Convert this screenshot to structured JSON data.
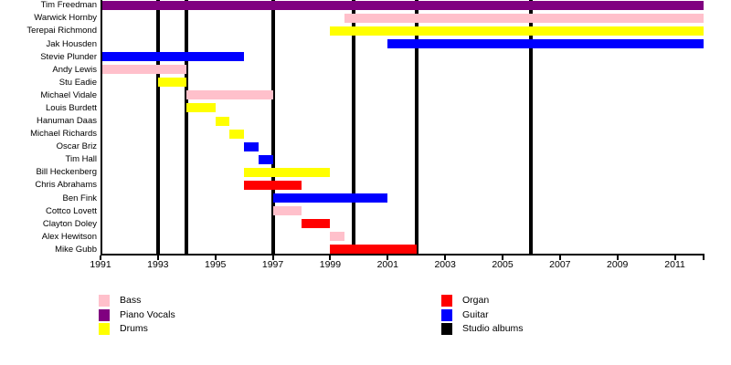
{
  "chart_data": {
    "type": "bar",
    "subtype": "timeline-gantt",
    "title": "",
    "xlabel": "",
    "ylabel": "",
    "grid": false,
    "x_axis": {
      "min": 1991,
      "max": 2012,
      "tick_years": [
        1991,
        1993,
        1995,
        1997,
        1999,
        2001,
        2003,
        2005,
        2007,
        2009,
        2011
      ],
      "tick_labels": [
        "1991",
        "1993",
        "1995",
        "1997",
        "1999",
        "2001",
        "2003",
        "2005",
        "2007",
        "2009",
        "2011"
      ],
      "end_tick_year": 2012
    },
    "role_colors": {
      "Bass": "#FFC0CB",
      "Piano Vocals": "#800080",
      "Drums": "#FFFF00",
      "Organ": "#FF0000",
      "Guitar": "#0000FF",
      "Studio albums": "#000000"
    },
    "members": [
      {
        "name": "Tim Freedman",
        "role": "Piano Vocals",
        "start": 1991,
        "end": 2012
      },
      {
        "name": "Warwick Hornby",
        "role": "Bass",
        "start": 1999.5,
        "end": 2012
      },
      {
        "name": "Terepai Richmond",
        "role": "Drums",
        "start": 1999,
        "end": 2012
      },
      {
        "name": "Jak Housden",
        "role": "Guitar",
        "start": 2001,
        "end": 2012
      },
      {
        "name": "Stevie Plunder",
        "role": "Guitar",
        "start": 1991,
        "end": 1996
      },
      {
        "name": "Andy Lewis",
        "role": "Bass",
        "start": 1991,
        "end": 1994
      },
      {
        "name": "Stu Eadie",
        "role": "Drums",
        "start": 1993,
        "end": 1994
      },
      {
        "name": "Michael Vidale",
        "role": "Bass",
        "start": 1994,
        "end": 1997
      },
      {
        "name": "Louis Burdett",
        "role": "Drums",
        "start": 1994,
        "end": 1995
      },
      {
        "name": "Hanuman Daas",
        "role": "Drums",
        "start": 1995,
        "end": 1995.5
      },
      {
        "name": "Michael Richards",
        "role": "Drums",
        "start": 1995.5,
        "end": 1996
      },
      {
        "name": "Oscar Briz",
        "role": "Guitar",
        "start": 1996,
        "end": 1996.5
      },
      {
        "name": "Tim Hall",
        "role": "Guitar",
        "start": 1996.5,
        "end": 1997
      },
      {
        "name": "Bill Heckenberg",
        "role": "Drums",
        "start": 1996,
        "end": 1999
      },
      {
        "name": "Chris Abrahams",
        "role": "Organ",
        "start": 1996,
        "end": 1998
      },
      {
        "name": "Ben Fink",
        "role": "Guitar",
        "start": 1997,
        "end": 2001
      },
      {
        "name": "Cottco Lovett",
        "role": "Bass",
        "start": 1997,
        "end": 1998
      },
      {
        "name": "Clayton Doley",
        "role": "Organ",
        "start": 1998,
        "end": 1999
      },
      {
        "name": "Alex Hewitson",
        "role": "Bass",
        "start": 1999,
        "end": 1999.5
      },
      {
        "name": "Mike Gubb",
        "role": "Organ",
        "start": 1999,
        "end": 2002
      }
    ],
    "studio_album_lines": [
      1993,
      1994,
      1997,
      1999.8,
      2002,
      2006
    ],
    "legend": {
      "position": "bottom",
      "columns": [
        [
          {
            "label": "Bass",
            "color": "#FFC0CB"
          },
          {
            "label": "Piano Vocals",
            "color": "#800080"
          },
          {
            "label": "Drums",
            "color": "#FFFF00"
          }
        ],
        [
          {
            "label": "Organ",
            "color": "#FF0000"
          },
          {
            "label": "Guitar",
            "color": "#0000FF"
          },
          {
            "label": "Studio albums",
            "color": "#000000"
          }
        ]
      ]
    }
  }
}
